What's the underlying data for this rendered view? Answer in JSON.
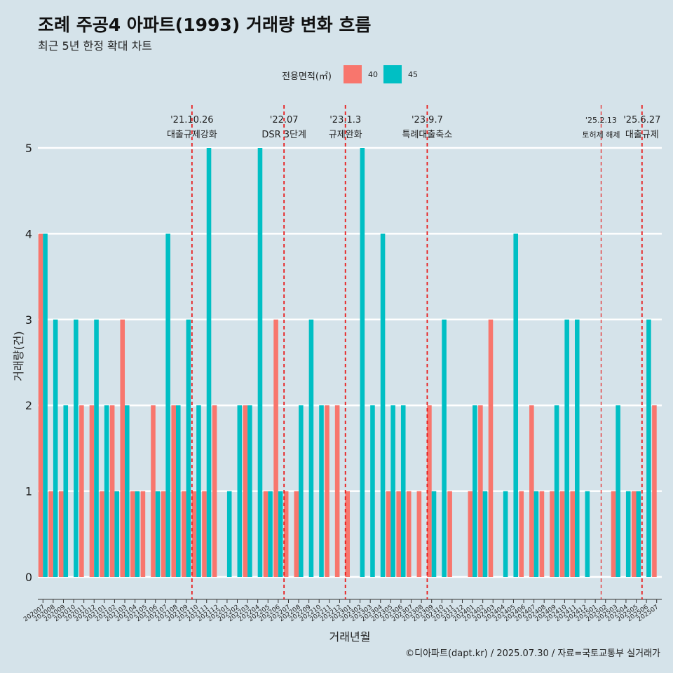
{
  "chart_data": {
    "type": "bar",
    "title": "조례 주공4 아파트(1993) 거래량 변화 흐름",
    "subtitle": "최근 5년 한정 확대 차트",
    "xlabel": "거래년월",
    "ylabel": "거래량(건)",
    "ylim": [
      0,
      5
    ],
    "yticks": [
      0,
      1,
      2,
      3,
      4,
      5
    ],
    "legend": {
      "title": "전용면적(㎡)",
      "position": "top",
      "entries": [
        {
          "label": "40",
          "color": "#f8766d"
        },
        {
          "label": "45",
          "color": "#00bfc4"
        }
      ]
    },
    "categories": [
      "202007",
      "202008",
      "202009",
      "202010",
      "202011",
      "202012",
      "202101",
      "202102",
      "202103",
      "202104",
      "202105",
      "202106",
      "202107",
      "202108",
      "202109",
      "202110",
      "202111",
      "202112",
      "202201",
      "202202",
      "202203",
      "202204",
      "202205",
      "202206",
      "202207",
      "202208",
      "202209",
      "202210",
      "202211",
      "202212",
      "202301",
      "202302",
      "202303",
      "202304",
      "202305",
      "202306",
      "202307",
      "202308",
      "202309",
      "202310",
      "202311",
      "202312",
      "202401",
      "202402",
      "202403",
      "202404",
      "202405",
      "202406",
      "202407",
      "202408",
      "202409",
      "202410",
      "202411",
      "202412",
      "202501",
      "202502",
      "202503",
      "202504",
      "202505",
      "202506",
      "202507"
    ],
    "series": [
      {
        "name": "40",
        "color": "#f8766d",
        "values": [
          4,
          1,
          1,
          0,
          2,
          2,
          1,
          2,
          3,
          1,
          1,
          2,
          1,
          2,
          1,
          1,
          1,
          2,
          0,
          0,
          2,
          0,
          1,
          3,
          1,
          1,
          0,
          0,
          2,
          2,
          1,
          0,
          0,
          0,
          1,
          1,
          1,
          1,
          2,
          0,
          1,
          0,
          1,
          2,
          3,
          0,
          0,
          1,
          2,
          1,
          1,
          1,
          1,
          0,
          0,
          0,
          1,
          0,
          1,
          0,
          2
        ]
      },
      {
        "name": "45",
        "color": "#00bfc4",
        "values": [
          4,
          3,
          2,
          3,
          0,
          3,
          2,
          1,
          2,
          1,
          0,
          1,
          4,
          2,
          3,
          2,
          5,
          0,
          1,
          2,
          2,
          5,
          1,
          1,
          0,
          2,
          3,
          2,
          0,
          0,
          0,
          5,
          2,
          4,
          2,
          2,
          0,
          0,
          1,
          3,
          0,
          0,
          2,
          1,
          0,
          1,
          4,
          0,
          1,
          0,
          2,
          3,
          3,
          1,
          0,
          0,
          2,
          1,
          1,
          3,
          0
        ]
      }
    ],
    "annotations": [
      {
        "category": "202110",
        "date": "'21.10.26",
        "label": "대출규제강화"
      },
      {
        "category": "202207",
        "date": "'22.07",
        "label": "DSR 3단계"
      },
      {
        "category": "202301",
        "date": "'23.1.3",
        "label": "규제완화"
      },
      {
        "category": "202309",
        "date": "'23.9.7",
        "label": "특례대출축소"
      },
      {
        "category": "202502",
        "date": "'25.2.13",
        "label": "토허제 해제"
      },
      {
        "category": "202506",
        "date": "'25.6.27",
        "label": "대출규제"
      }
    ],
    "caption": "©디아파트(dapt.kr) / 2025.07.30 / 자료=국토교통부 실거래가"
  }
}
